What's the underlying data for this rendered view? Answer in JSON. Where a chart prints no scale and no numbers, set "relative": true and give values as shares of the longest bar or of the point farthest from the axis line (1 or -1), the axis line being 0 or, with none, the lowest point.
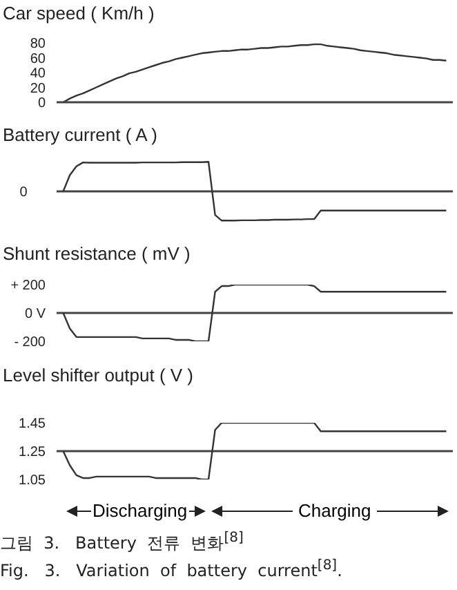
{
  "chart_data": [
    {
      "type": "line",
      "title": "Car speed ( Km/h )",
      "categories": [
        null,
        null,
        null,
        null,
        null,
        null,
        null,
        null,
        null,
        null,
        null,
        null,
        null,
        null,
        null,
        null,
        null,
        null,
        null,
        null,
        null,
        null,
        null,
        null,
        null,
        null,
        null,
        null,
        null,
        null,
        null,
        null,
        null,
        null,
        null,
        null,
        null,
        null,
        null,
        null,
        null,
        null,
        null,
        null,
        null,
        null,
        null,
        null,
        null,
        null,
        null,
        null,
        null,
        null,
        null,
        null,
        null,
        null,
        null,
        null,
        null
      ],
      "tick_labels": "y",
      "ylim": [
        0,
        80
      ],
      "yticks": [
        0,
        20,
        40,
        60,
        80
      ],
      "color": "#333333",
      "marker": "none",
      "line_style": "solid",
      "values": [
        null,
        0,
        5,
        9,
        12,
        16,
        20,
        24,
        28,
        32,
        35,
        39,
        41,
        44,
        47,
        50,
        53,
        55,
        58,
        60,
        62,
        64,
        66,
        67,
        68,
        69,
        69,
        70,
        71,
        71,
        72,
        73,
        73,
        74,
        75,
        75,
        76,
        77,
        77,
        78,
        78,
        76,
        75,
        74,
        73,
        72,
        70,
        69,
        68,
        67,
        66,
        64,
        63,
        62,
        61,
        60,
        59,
        57,
        57,
        56,
        null
      ]
    },
    {
      "type": "line",
      "title": "Battery current ( A )",
      "relative": true,
      "categories": [
        null,
        null,
        null,
        null,
        null,
        null,
        null,
        null,
        null,
        null,
        null,
        null,
        null,
        null,
        null,
        null,
        null,
        null,
        null,
        null,
        null,
        null,
        null,
        null,
        null,
        null,
        null,
        null,
        null,
        null,
        null,
        null,
        null,
        null,
        null,
        null,
        null,
        null,
        null,
        null,
        null,
        null,
        null,
        null,
        null,
        null,
        null,
        null,
        null,
        null,
        null,
        null,
        null,
        null,
        null,
        null,
        null,
        null,
        null,
        null,
        null
      ],
      "tick_labels": "y",
      "color": "#333333",
      "marker": "none",
      "line_style": "solid",
      "values": [
        null,
        0,
        0.55,
        0.85,
        0.98,
        0.97,
        0.97,
        0.97,
        0.97,
        0.97,
        0.97,
        0.97,
        0.97,
        0.98,
        0.98,
        0.98,
        0.98,
        0.98,
        0.98,
        0.99,
        0.99,
        0.99,
        0.99,
        1.0,
        -0.8,
        -0.99,
        -0.99,
        -0.99,
        -0.98,
        -0.98,
        -0.98,
        -0.97,
        -0.97,
        -0.96,
        -0.96,
        -0.96,
        -0.95,
        -0.95,
        -0.94,
        -0.94,
        -0.65,
        -0.65,
        -0.65,
        -0.65,
        -0.65,
        -0.65,
        -0.65,
        -0.65,
        -0.65,
        -0.65,
        -0.65,
        -0.65,
        -0.65,
        -0.65,
        -0.65,
        -0.65,
        -0.65,
        -0.65,
        -0.65,
        -0.65,
        null
      ],
      "ref_lines": [
        {
          "axis": "y",
          "value": 0,
          "label": "0"
        }
      ]
    },
    {
      "type": "line",
      "title": "Shunt resistance ( mV )",
      "categories": [
        null,
        null,
        null,
        null,
        null,
        null,
        null,
        null,
        null,
        null,
        null,
        null,
        null,
        null,
        null,
        null,
        null,
        null,
        null,
        null,
        null,
        null,
        null,
        null,
        null,
        null,
        null,
        null,
        null,
        null,
        null,
        null,
        null,
        null,
        null,
        null,
        null,
        null,
        null,
        null,
        null,
        null,
        null,
        null,
        null,
        null,
        null,
        null,
        null,
        null,
        null,
        null,
        null,
        null,
        null,
        null,
        null,
        null,
        null,
        null,
        null
      ],
      "tick_labels": "y",
      "ylim": [
        -200,
        200
      ],
      "yticks": [
        {
          "value": 200,
          "label": "+ 200"
        },
        {
          "value": 0,
          "label": "0 V"
        },
        {
          "value": -200,
          "label": "- 200"
        }
      ],
      "color": "#333333",
      "marker": "none",
      "line_style": "solid",
      "values": [
        null,
        0,
        -110,
        -170,
        -170,
        -170,
        -170,
        -170,
        -170,
        -170,
        -170,
        -170,
        -170,
        -180,
        -180,
        -180,
        -180,
        -180,
        -190,
        -190,
        -190,
        -200,
        -200,
        -200,
        150,
        190,
        190,
        200,
        200,
        200,
        200,
        200,
        200,
        200,
        200,
        200,
        200,
        200,
        200,
        190,
        150,
        150,
        150,
        150,
        150,
        150,
        150,
        150,
        150,
        150,
        150,
        150,
        150,
        150,
        150,
        150,
        150,
        150,
        150,
        150,
        null
      ],
      "ref_lines": [
        {
          "axis": "y",
          "value": 0,
          "label": null
        }
      ]
    },
    {
      "type": "line",
      "title": "Level shifter output ( V )",
      "categories": [
        null,
        null,
        null,
        null,
        null,
        null,
        null,
        null,
        null,
        null,
        null,
        null,
        null,
        null,
        null,
        null,
        null,
        null,
        null,
        null,
        null,
        null,
        null,
        null,
        null,
        null,
        null,
        null,
        null,
        null,
        null,
        null,
        null,
        null,
        null,
        null,
        null,
        null,
        null,
        null,
        null,
        null,
        null,
        null,
        null,
        null,
        null,
        null,
        null,
        null,
        null,
        null,
        null,
        null,
        null,
        null,
        null,
        null,
        null,
        null,
        null
      ],
      "tick_labels": "y",
      "ylim": [
        1.05,
        1.45
      ],
      "yticks": [
        1.05,
        1.25,
        1.45
      ],
      "color": "#333333",
      "marker": "none",
      "line_style": "solid",
      "values": [
        null,
        1.25,
        1.15,
        1.08,
        1.06,
        1.06,
        1.07,
        1.07,
        1.07,
        1.07,
        1.07,
        1.07,
        1.07,
        1.07,
        1.07,
        1.06,
        1.06,
        1.06,
        1.06,
        1.06,
        1.06,
        1.06,
        1.05,
        1.05,
        1.4,
        1.45,
        1.45,
        1.45,
        1.45,
        1.45,
        1.45,
        1.45,
        1.45,
        1.45,
        1.45,
        1.45,
        1.45,
        1.45,
        1.45,
        1.45,
        1.39,
        1.39,
        1.39,
        1.39,
        1.39,
        1.39,
        1.39,
        1.39,
        1.39,
        1.39,
        1.39,
        1.39,
        1.39,
        1.39,
        1.39,
        1.39,
        1.39,
        1.39,
        1.39,
        1.39,
        null
      ],
      "ref_lines": [
        {
          "axis": "y",
          "value": 1.25,
          "label": null
        }
      ],
      "annotations": [
        "Discharging",
        "Charging",
        "그림  3.   Battery  전류  변화$^{[8]}$",
        "Fig.   3.   Variation  of  battery  current$^{[8]}$."
      ]
    }
  ]
}
